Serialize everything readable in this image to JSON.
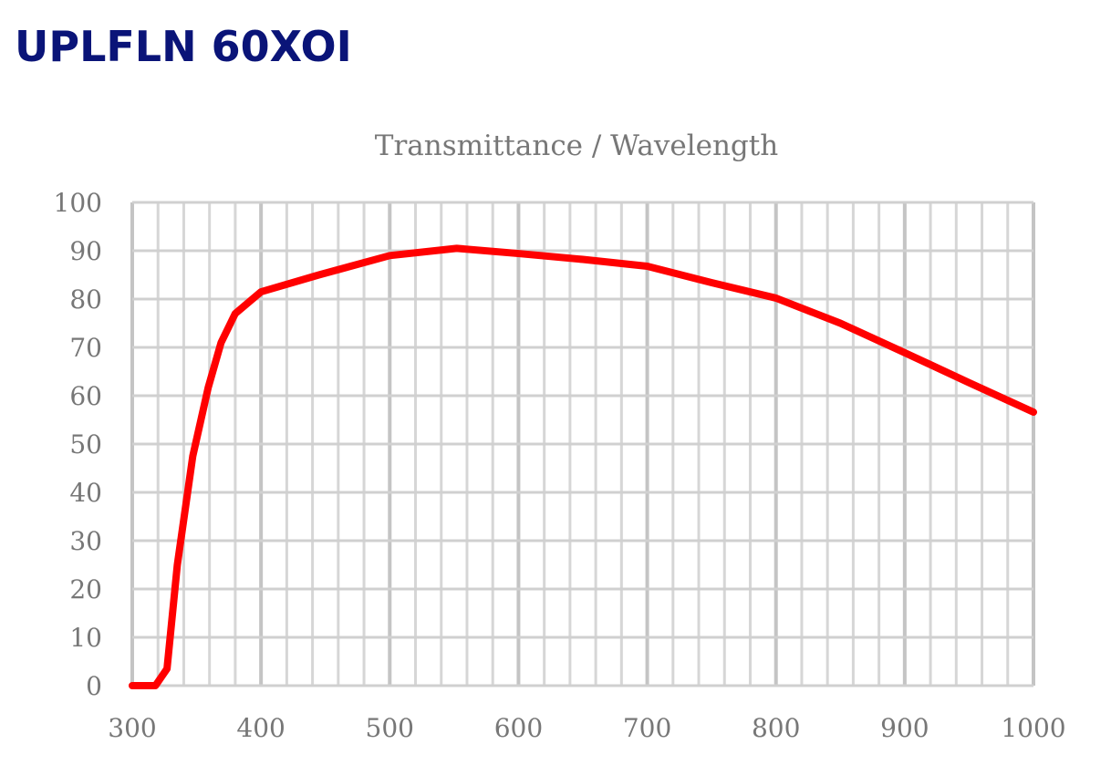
{
  "page_title": "UPLFLN 60XOI",
  "chart_data": {
    "type": "line",
    "title": "Transmittance / Wavelength",
    "xlabel": "",
    "ylabel": "",
    "xlim": [
      300,
      1000
    ],
    "ylim": [
      0,
      100
    ],
    "xticks": [
      300,
      400,
      500,
      600,
      700,
      800,
      900,
      1000
    ],
    "yticks": [
      0,
      10,
      20,
      30,
      40,
      50,
      60,
      70,
      80,
      90,
      100
    ],
    "x_minor_step": 20,
    "y_step": 10,
    "grid": true,
    "line_color": "#ff0000",
    "series": [
      {
        "name": "Transmittance",
        "x": [
          300,
          318,
          327,
          335,
          347,
          359,
          369,
          380,
          400,
          445,
          500,
          552,
          601,
          650,
          700,
          750,
          800,
          850,
          900,
          950,
          1000
        ],
        "y": [
          0,
          0,
          3.5,
          25,
          47.5,
          61.7,
          71,
          77,
          81.5,
          85,
          89,
          90.5,
          89.4,
          88.2,
          86.8,
          83.4,
          80.2,
          75,
          68.9,
          62.7,
          56.6
        ]
      }
    ]
  }
}
